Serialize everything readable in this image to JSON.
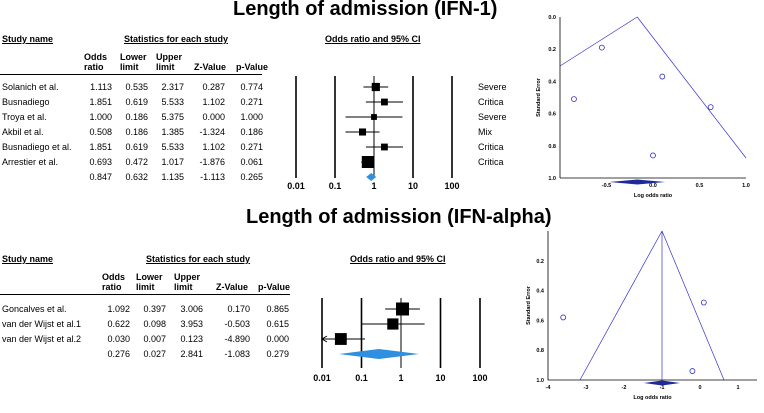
{
  "panels": [
    {
      "title": "Length of admission (IFN-1)",
      "headers": {
        "study_name": "Study name",
        "stats_group": "Statistics for each study",
        "odds_ratio": "Odds ratio",
        "lower": "Lower limit",
        "upper": "Upper limit",
        "z": "Z-Value",
        "p": "p-Value",
        "ci_group": "Odds ratio and 95% CI"
      },
      "rows": [
        {
          "study": "Solanich et al.",
          "or": "1.113",
          "ll": "0.535",
          "ul": "2.317",
          "z": "0.287",
          "p": "0.774",
          "note": "Severe"
        },
        {
          "study": "Busnadiego",
          "or": "1.851",
          "ll": "0.619",
          "ul": "5.533",
          "z": "1.102",
          "p": "0.271",
          "note": "Critica"
        },
        {
          "study": "Troya et al.",
          "or": "1.000",
          "ll": "0.186",
          "ul": "5.375",
          "z": "0.000",
          "p": "1.000",
          "note": "Severe"
        },
        {
          "study": "Akbil et al.",
          "or": "0.508",
          "ll": "0.186",
          "ul": "1.385",
          "z": "-1.324",
          "p": "0.186",
          "note": "Mix"
        },
        {
          "study": "Busnadiego et al.",
          "or": "1.851",
          "ll": "0.619",
          "ul": "5.533",
          "z": "1.102",
          "p": "0.271",
          "note": "Critica"
        },
        {
          "study": "Arrestier et al.",
          "or": "0.693",
          "ll": "0.472",
          "ul": "1.017",
          "z": "-1.876",
          "p": "0.061",
          "note": "Critica"
        }
      ],
      "pooled": {
        "or": "0.847",
        "ll": "0.632",
        "ul": "1.135",
        "z": "-1.113",
        "p": "0.265"
      },
      "axis_ticks": [
        "0.01",
        "0.1",
        "1",
        "10",
        "100"
      ]
    },
    {
      "title": "Length of admission (IFN-alpha)",
      "headers": {
        "study_name": "Study name",
        "stats_group": "Statistics for each study",
        "odds_ratio": "Odds ratio",
        "lower": "Lower limit",
        "upper": "Upper limit",
        "z": "Z-Value",
        "p": "p-Value",
        "ci_group": "Odds ratio and 95% CI"
      },
      "rows": [
        {
          "study": "Goncalves et al.",
          "or": "1.092",
          "ll": "0.397",
          "ul": "3.006",
          "z": "0.170",
          "p": "0.865"
        },
        {
          "study": "van der Wijst et al.1",
          "or": "0.622",
          "ll": "0.098",
          "ul": "3.953",
          "z": "-0.503",
          "p": "0.615"
        },
        {
          "study": "van der Wijst et al.2",
          "or": "0.030",
          "ll": "0.007",
          "ul": "0.123",
          "z": "-4.890",
          "p": "0.000"
        }
      ],
      "pooled": {
        "or": "0.276",
        "ll": "0.027",
        "ul": "2.841",
        "z": "-1.083",
        "p": "0.279"
      },
      "axis_ticks": [
        "0.01",
        "0.1",
        "1",
        "10",
        "100"
      ]
    }
  ],
  "chart_data": [
    {
      "type": "scatter",
      "subtype": "forest",
      "title": "Length of admission (IFN-1)",
      "xlabel": "",
      "x_scale": "log",
      "xlim": [
        0.01,
        100
      ],
      "series": [
        {
          "values": [
            {
              "study": "Solanich et al.",
              "or": 1.113,
              "ll": 0.535,
              "ul": 2.317
            },
            {
              "study": "Busnadiego",
              "or": 1.851,
              "ll": 0.619,
              "ul": 5.533
            },
            {
              "study": "Troya et al.",
              "or": 1.0,
              "ll": 0.186,
              "ul": 5.375
            },
            {
              "study": "Akbil et al.",
              "or": 0.508,
              "ll": 0.186,
              "ul": 1.385
            },
            {
              "study": "Busnadiego et al.",
              "or": 1.851,
              "ll": 0.619,
              "ul": 5.533
            },
            {
              "study": "Arrestier et al.",
              "or": 0.693,
              "ll": 0.472,
              "ul": 1.017
            }
          ]
        }
      ],
      "pooled": {
        "or": 0.847,
        "ll": 0.632,
        "ul": 1.135
      },
      "pooled_color": "#2f8fe0"
    },
    {
      "type": "scatter",
      "subtype": "funnel",
      "xlabel": "Log odds ratio",
      "ylabel": "Standard Error",
      "xlim": [
        -1.0,
        1.0
      ],
      "ylim": [
        1.0,
        0.0
      ],
      "xticks": [
        "-0.5",
        "0.0",
        "0.5",
        "1.0"
      ],
      "yticks": [
        "0.0",
        "0.2",
        "0.4",
        "0.6",
        "0.8",
        "1.0"
      ],
      "points": [
        {
          "x": -0.55,
          "y": 0.19
        },
        {
          "x": -0.85,
          "y": 0.51
        },
        {
          "x": 0.1,
          "y": 0.37
        },
        {
          "x": 0.62,
          "y": 0.56
        },
        {
          "x": 0.0,
          "y": 0.86
        }
      ],
      "funnel_apex": {
        "x": -0.17,
        "y": 0.0
      },
      "pooled_diamond": {
        "x": -0.17,
        "y": 1.02
      },
      "color": "#3333cc"
    },
    {
      "type": "scatter",
      "subtype": "forest",
      "title": "Length of admission (IFN-alpha)",
      "xlabel": "",
      "x_scale": "log",
      "xlim": [
        0.01,
        100
      ],
      "series": [
        {
          "values": [
            {
              "study": "Goncalves et al.",
              "or": 1.092,
              "ll": 0.397,
              "ul": 3.006
            },
            {
              "study": "van der Wijst et al.1",
              "or": 0.622,
              "ll": 0.098,
              "ul": 3.953
            },
            {
              "study": "van der Wijst et al.2",
              "or": 0.03,
              "ll": 0.007,
              "ul": 0.123
            }
          ]
        }
      ],
      "pooled": {
        "or": 0.276,
        "ll": 0.027,
        "ul": 2.841
      },
      "pooled_color": "#2f8fe0"
    },
    {
      "type": "scatter",
      "subtype": "funnel",
      "xlabel": "Log odds ratio",
      "ylabel": "Standard Error",
      "xlim": [
        -4,
        1.5
      ],
      "ylim": [
        1.0,
        0.0
      ],
      "xticks": [
        "-4",
        "-3",
        "-2",
        "-1",
        "0",
        "1"
      ],
      "yticks": [
        "0.2",
        "0.4",
        "0.6",
        "0.8",
        "1.0"
      ],
      "points": [
        {
          "x": -3.6,
          "y": 0.58
        },
        {
          "x": 0.1,
          "y": 0.48
        },
        {
          "x": -0.2,
          "y": 0.94
        }
      ],
      "funnel_apex": {
        "x": -1.0,
        "y": 0.0
      },
      "pooled_diamond": {
        "x": -1.0,
        "y": 1.0
      },
      "color": "#3333cc"
    }
  ]
}
